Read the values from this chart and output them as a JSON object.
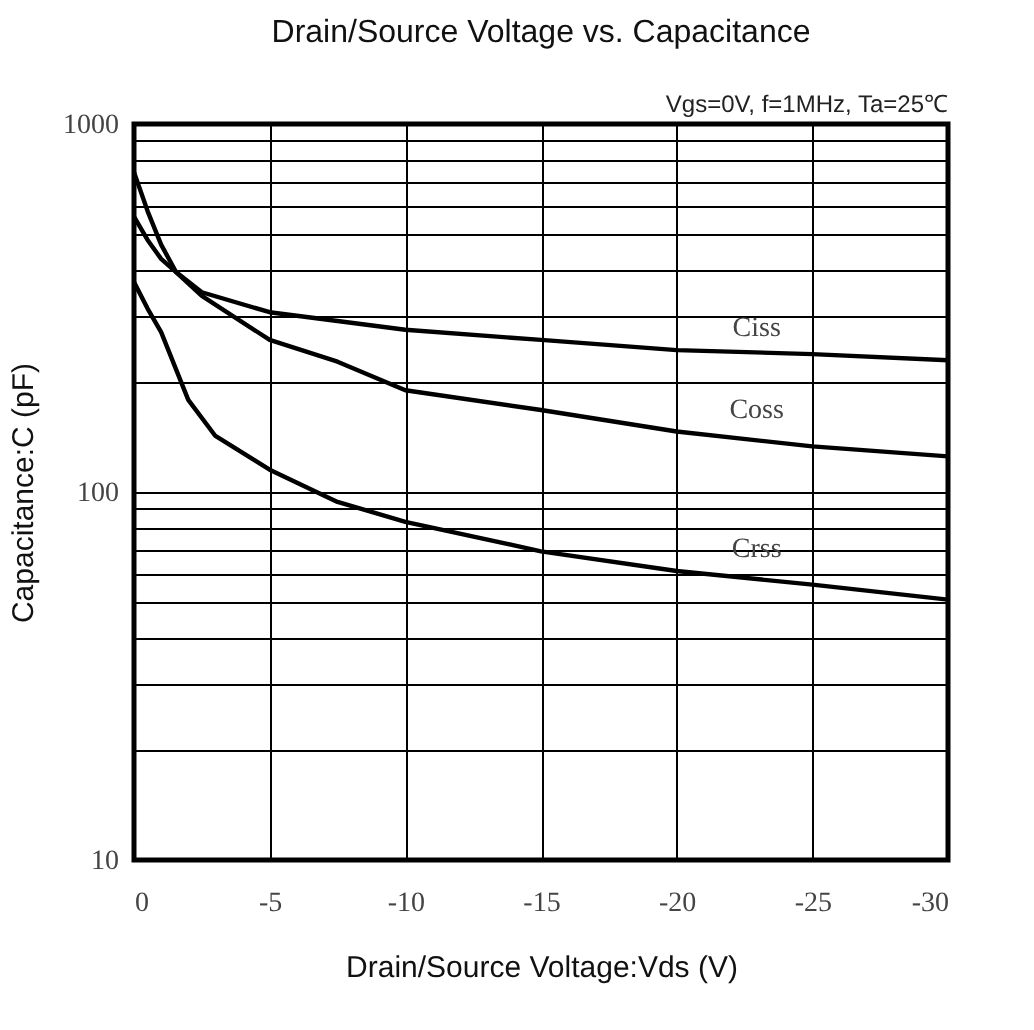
{
  "chart_data": {
    "type": "line",
    "title": "Drain/Source Voltage vs. Capacitance",
    "xlabel": "Drain/Source Voltage:Vds  (V)",
    "ylabel": "Capacitance:C  (pF)",
    "annotations": [
      "Vgs=0V, f=1MHz, Ta=25℃"
    ],
    "log": "y",
    "grid": true,
    "legend": false,
    "xlim": [
      0,
      -30
    ],
    "xticks": [
      0,
      -5,
      -10,
      -15,
      -20,
      -25,
      -30
    ],
    "ylim": [
      10,
      1000
    ],
    "yticks": [
      10,
      {
        "value": 20,
        "label": null
      },
      {
        "value": 30,
        "label": null
      },
      {
        "value": 40,
        "label": null
      },
      {
        "value": 50,
        "label": null
      },
      {
        "value": 60,
        "label": null
      },
      {
        "value": 70,
        "label": null
      },
      {
        "value": 80,
        "label": null
      },
      {
        "value": 90,
        "label": null
      },
      100,
      {
        "value": 200,
        "label": null
      },
      {
        "value": 300,
        "label": null
      },
      {
        "value": 400,
        "label": null
      },
      {
        "value": 500,
        "label": null
      },
      {
        "value": 600,
        "label": null
      },
      {
        "value": 700,
        "label": null
      },
      {
        "value": 800,
        "label": null
      },
      {
        "value": 900,
        "label": null
      },
      1000
    ],
    "series": [
      {
        "name": "Ciss",
        "color": "#000000",
        "x": [
          0,
          -0.5,
          -1,
          -1.55,
          -2.5,
          -5,
          -10,
          -15,
          -20,
          -25,
          -30
        ],
        "values": [
          560,
          484,
          430,
          396,
          349,
          308,
          276,
          259,
          243,
          237,
          228
        ]
      },
      {
        "name": "Coss",
        "color": "#000000",
        "x": [
          0,
          -0.5,
          -1,
          -1.55,
          -2.5,
          -5,
          -7.5,
          -10,
          -15,
          -20,
          -25,
          -30
        ],
        "values": [
          740,
          580,
          470,
          396,
          341,
          259,
          226,
          189,
          167,
          146,
          133,
          125
        ]
      },
      {
        "name": "Crss",
        "color": "#000000",
        "x": [
          0,
          -0.5,
          -1,
          -2,
          -3,
          -5,
          -7.5,
          -10,
          -15,
          -20,
          -25,
          -30
        ],
        "values": [
          372,
          315,
          272,
          178,
          142,
          115,
          94,
          83,
          69,
          61,
          56,
          51
        ]
      }
    ]
  }
}
